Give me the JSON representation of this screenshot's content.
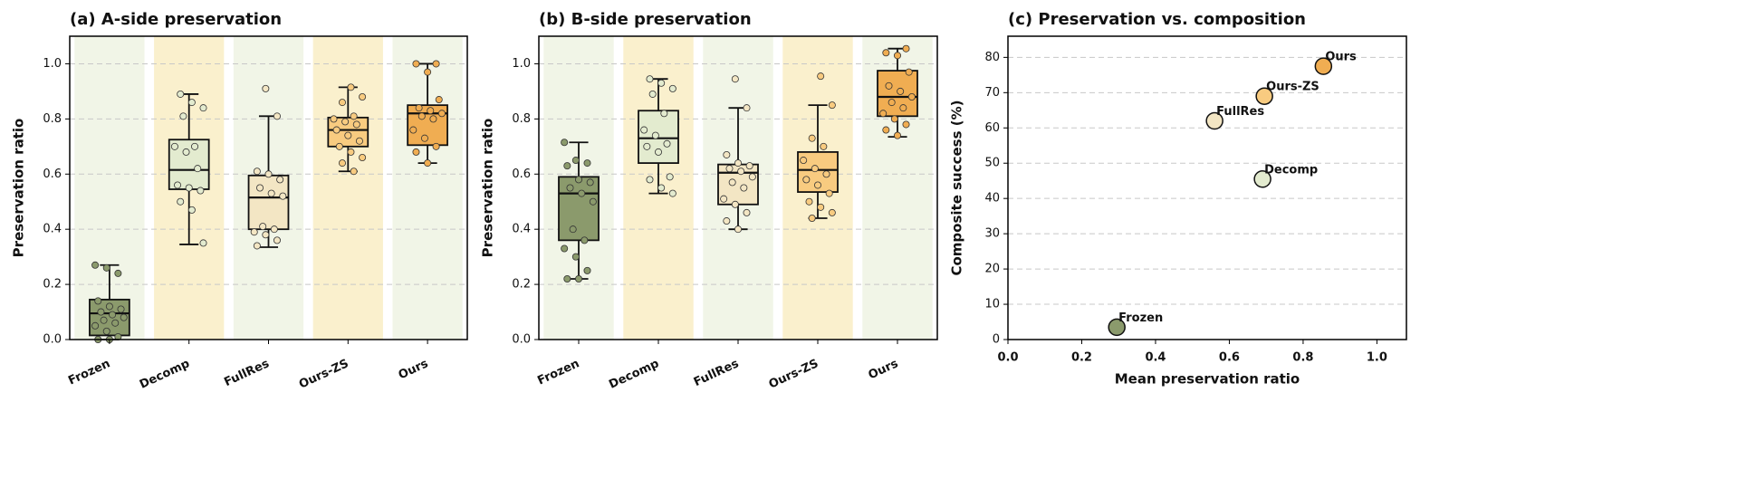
{
  "chart_data": [
    {
      "type": "box",
      "title": "(a) A-side preservation",
      "y_label": "Preservation ratio",
      "categories": [
        "Frozen",
        "Decomp",
        "FullRes",
        "Ours-ZS",
        "Ours"
      ],
      "colors": [
        "#8b9a6c",
        "#e3ebcf",
        "#f3e6c4",
        "#f8cb80",
        "#f0ad52"
      ],
      "band_colors": [
        "#f1f5e7",
        "#faf0cd",
        "#f1f5e7",
        "#faf0cd",
        "#f1f5e7"
      ],
      "ylim": [
        0,
        1.1
      ],
      "yticks": [
        {
          "value": 0,
          "label": "0.0"
        },
        {
          "value": 0.2,
          "label": "0.2"
        },
        {
          "value": 0.4,
          "label": "0.4"
        },
        {
          "value": 0.6,
          "label": "0.6"
        },
        {
          "value": 0.8,
          "label": "0.8"
        },
        {
          "value": 1.0,
          "label": "1.0"
        }
      ],
      "grid": true,
      "boxes": [
        {
          "whislo": 0.0,
          "q1": 0.015,
          "med": 0.095,
          "q3": 0.145,
          "whishi": 0.27,
          "points": [
            0.27,
            0.26,
            0.24,
            0.14,
            0.12,
            0.11,
            0.1,
            0.09,
            0.08,
            0.07,
            0.06,
            0.05,
            0.03,
            0.01,
            0.0,
            0.0
          ]
        },
        {
          "whislo": 0.345,
          "q1": 0.545,
          "med": 0.615,
          "q3": 0.725,
          "whishi": 0.89,
          "points": [
            0.89,
            0.86,
            0.84,
            0.81,
            0.7,
            0.7,
            0.68,
            0.62,
            0.56,
            0.55,
            0.54,
            0.5,
            0.47,
            0.35
          ]
        },
        {
          "whislo": 0.335,
          "q1": 0.4,
          "med": 0.515,
          "q3": 0.595,
          "whishi": 0.81,
          "points": [
            0.91,
            0.81,
            0.61,
            0.6,
            0.58,
            0.55,
            0.53,
            0.52,
            0.41,
            0.4,
            0.39,
            0.38,
            0.36,
            0.34
          ]
        },
        {
          "whislo": 0.61,
          "q1": 0.7,
          "med": 0.76,
          "q3": 0.805,
          "whishi": 0.915,
          "points": [
            0.915,
            0.88,
            0.86,
            0.81,
            0.8,
            0.79,
            0.78,
            0.76,
            0.74,
            0.72,
            0.7,
            0.68,
            0.66,
            0.64,
            0.61
          ]
        },
        {
          "whislo": 0.64,
          "q1": 0.705,
          "med": 0.82,
          "q3": 0.85,
          "whishi": 1.0,
          "points": [
            1.0,
            1.0,
            0.97,
            0.87,
            0.84,
            0.83,
            0.82,
            0.81,
            0.8,
            0.76,
            0.73,
            0.7,
            0.68,
            0.64
          ]
        }
      ]
    },
    {
      "type": "box",
      "title": "(b) B-side preservation",
      "y_label": "Preservation ratio",
      "categories": [
        "Frozen",
        "Decomp",
        "FullRes",
        "Ours-ZS",
        "Ours"
      ],
      "colors": [
        "#8b9a6c",
        "#e3ebcf",
        "#f3e6c4",
        "#f8cb80",
        "#f0ad52"
      ],
      "band_colors": [
        "#f1f5e7",
        "#faf0cd",
        "#f1f5e7",
        "#faf0cd",
        "#f1f5e7"
      ],
      "ylim": [
        0,
        1.1
      ],
      "yticks": [
        {
          "value": 0,
          "label": "0.0"
        },
        {
          "value": 0.2,
          "label": "0.2"
        },
        {
          "value": 0.4,
          "label": "0.4"
        },
        {
          "value": 0.6,
          "label": "0.6"
        },
        {
          "value": 0.8,
          "label": "0.8"
        },
        {
          "value": 1.0,
          "label": "1.0"
        }
      ],
      "grid": true,
      "boxes": [
        {
          "whislo": 0.22,
          "q1": 0.36,
          "med": 0.53,
          "q3": 0.59,
          "whishi": 0.715,
          "points": [
            0.715,
            0.65,
            0.64,
            0.63,
            0.58,
            0.57,
            0.55,
            0.53,
            0.5,
            0.4,
            0.36,
            0.33,
            0.3,
            0.25,
            0.22,
            0.22
          ]
        },
        {
          "whislo": 0.53,
          "q1": 0.64,
          "med": 0.73,
          "q3": 0.83,
          "whishi": 0.945,
          "points": [
            0.945,
            0.93,
            0.91,
            0.89,
            0.82,
            0.76,
            0.74,
            0.71,
            0.7,
            0.68,
            0.59,
            0.58,
            0.55,
            0.53
          ]
        },
        {
          "whislo": 0.4,
          "q1": 0.49,
          "med": 0.605,
          "q3": 0.635,
          "whishi": 0.84,
          "points": [
            0.945,
            0.84,
            0.67,
            0.64,
            0.63,
            0.62,
            0.61,
            0.59,
            0.57,
            0.55,
            0.51,
            0.49,
            0.46,
            0.43,
            0.4
          ]
        },
        {
          "whislo": 0.44,
          "q1": 0.535,
          "med": 0.615,
          "q3": 0.68,
          "whishi": 0.85,
          "points": [
            0.955,
            0.85,
            0.73,
            0.7,
            0.65,
            0.62,
            0.6,
            0.58,
            0.56,
            0.53,
            0.5,
            0.48,
            0.46,
            0.44
          ]
        },
        {
          "whislo": 0.735,
          "q1": 0.81,
          "med": 0.88,
          "q3": 0.975,
          "whishi": 1.055,
          "points": [
            1.055,
            1.04,
            1.03,
            0.97,
            0.92,
            0.9,
            0.88,
            0.86,
            0.84,
            0.82,
            0.8,
            0.78,
            0.76,
            0.74
          ]
        }
      ]
    },
    {
      "type": "scatter",
      "title": "(c) Preservation vs. composition",
      "x_label": "Mean preservation ratio",
      "y_label": "Composite success (%)",
      "labels": [
        "Frozen",
        "Decomp",
        "FullRes",
        "Ours-ZS",
        "Ours"
      ],
      "colors": [
        "#8b9a6c",
        "#e3ebcf",
        "#f3e6c4",
        "#f8cb80",
        "#f0ad52"
      ],
      "x": [
        0.295,
        0.69,
        0.56,
        0.695,
        0.855
      ],
      "y": [
        3.5,
        45.5,
        62,
        69,
        77.5
      ],
      "xlim": [
        0,
        1.08
      ],
      "ylim": [
        0,
        86
      ],
      "xticks": [
        {
          "value": 0,
          "label": "0.0"
        },
        {
          "value": 0.2,
          "label": "0.2"
        },
        {
          "value": 0.4,
          "label": "0.4"
        },
        {
          "value": 0.6,
          "label": "0.6"
        },
        {
          "value": 0.8,
          "label": "0.8"
        },
        {
          "value": 1.0,
          "label": "1.0"
        }
      ],
      "yticks": [
        0,
        10,
        20,
        30,
        40,
        50,
        60,
        70,
        80
      ],
      "grid": true
    }
  ]
}
